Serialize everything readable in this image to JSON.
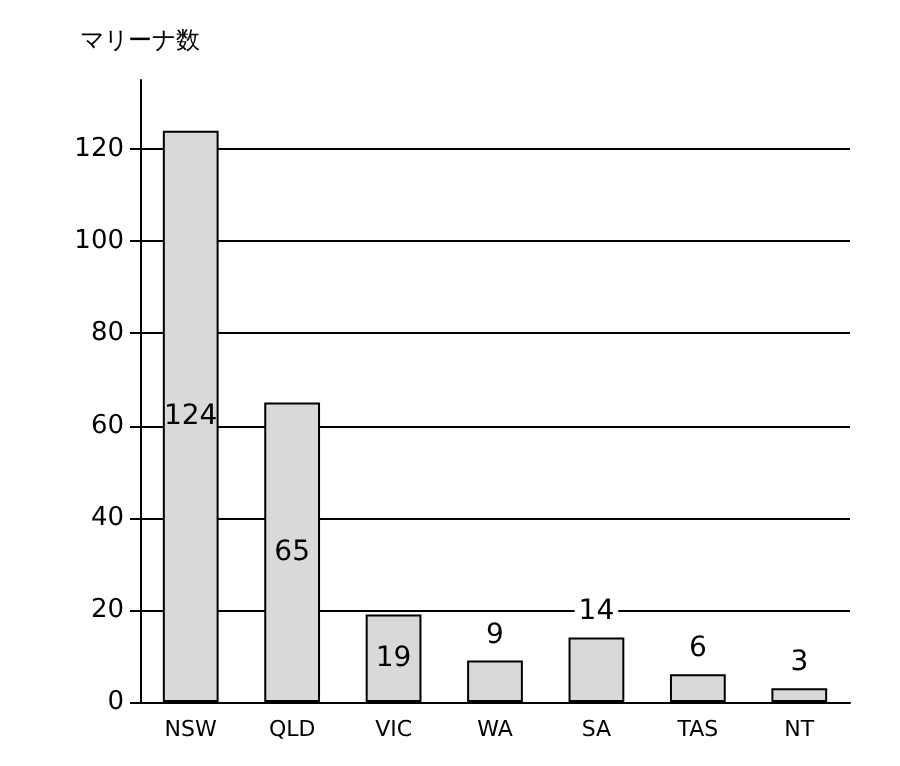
{
  "chart_data": {
    "type": "bar",
    "ylabel": "マリーナ数",
    "categories": [
      "NSW",
      "QLD",
      "VIC",
      "WA",
      "SA",
      "TAS",
      "NT"
    ],
    "values": [
      124,
      65,
      19,
      9,
      14,
      6,
      3
    ],
    "color": "#d9d9d9",
    "ylim": [
      0,
      135
    ],
    "yticks": [
      0,
      20,
      40,
      60,
      80,
      100,
      120
    ],
    "grid": "y",
    "data_labels": true
  }
}
